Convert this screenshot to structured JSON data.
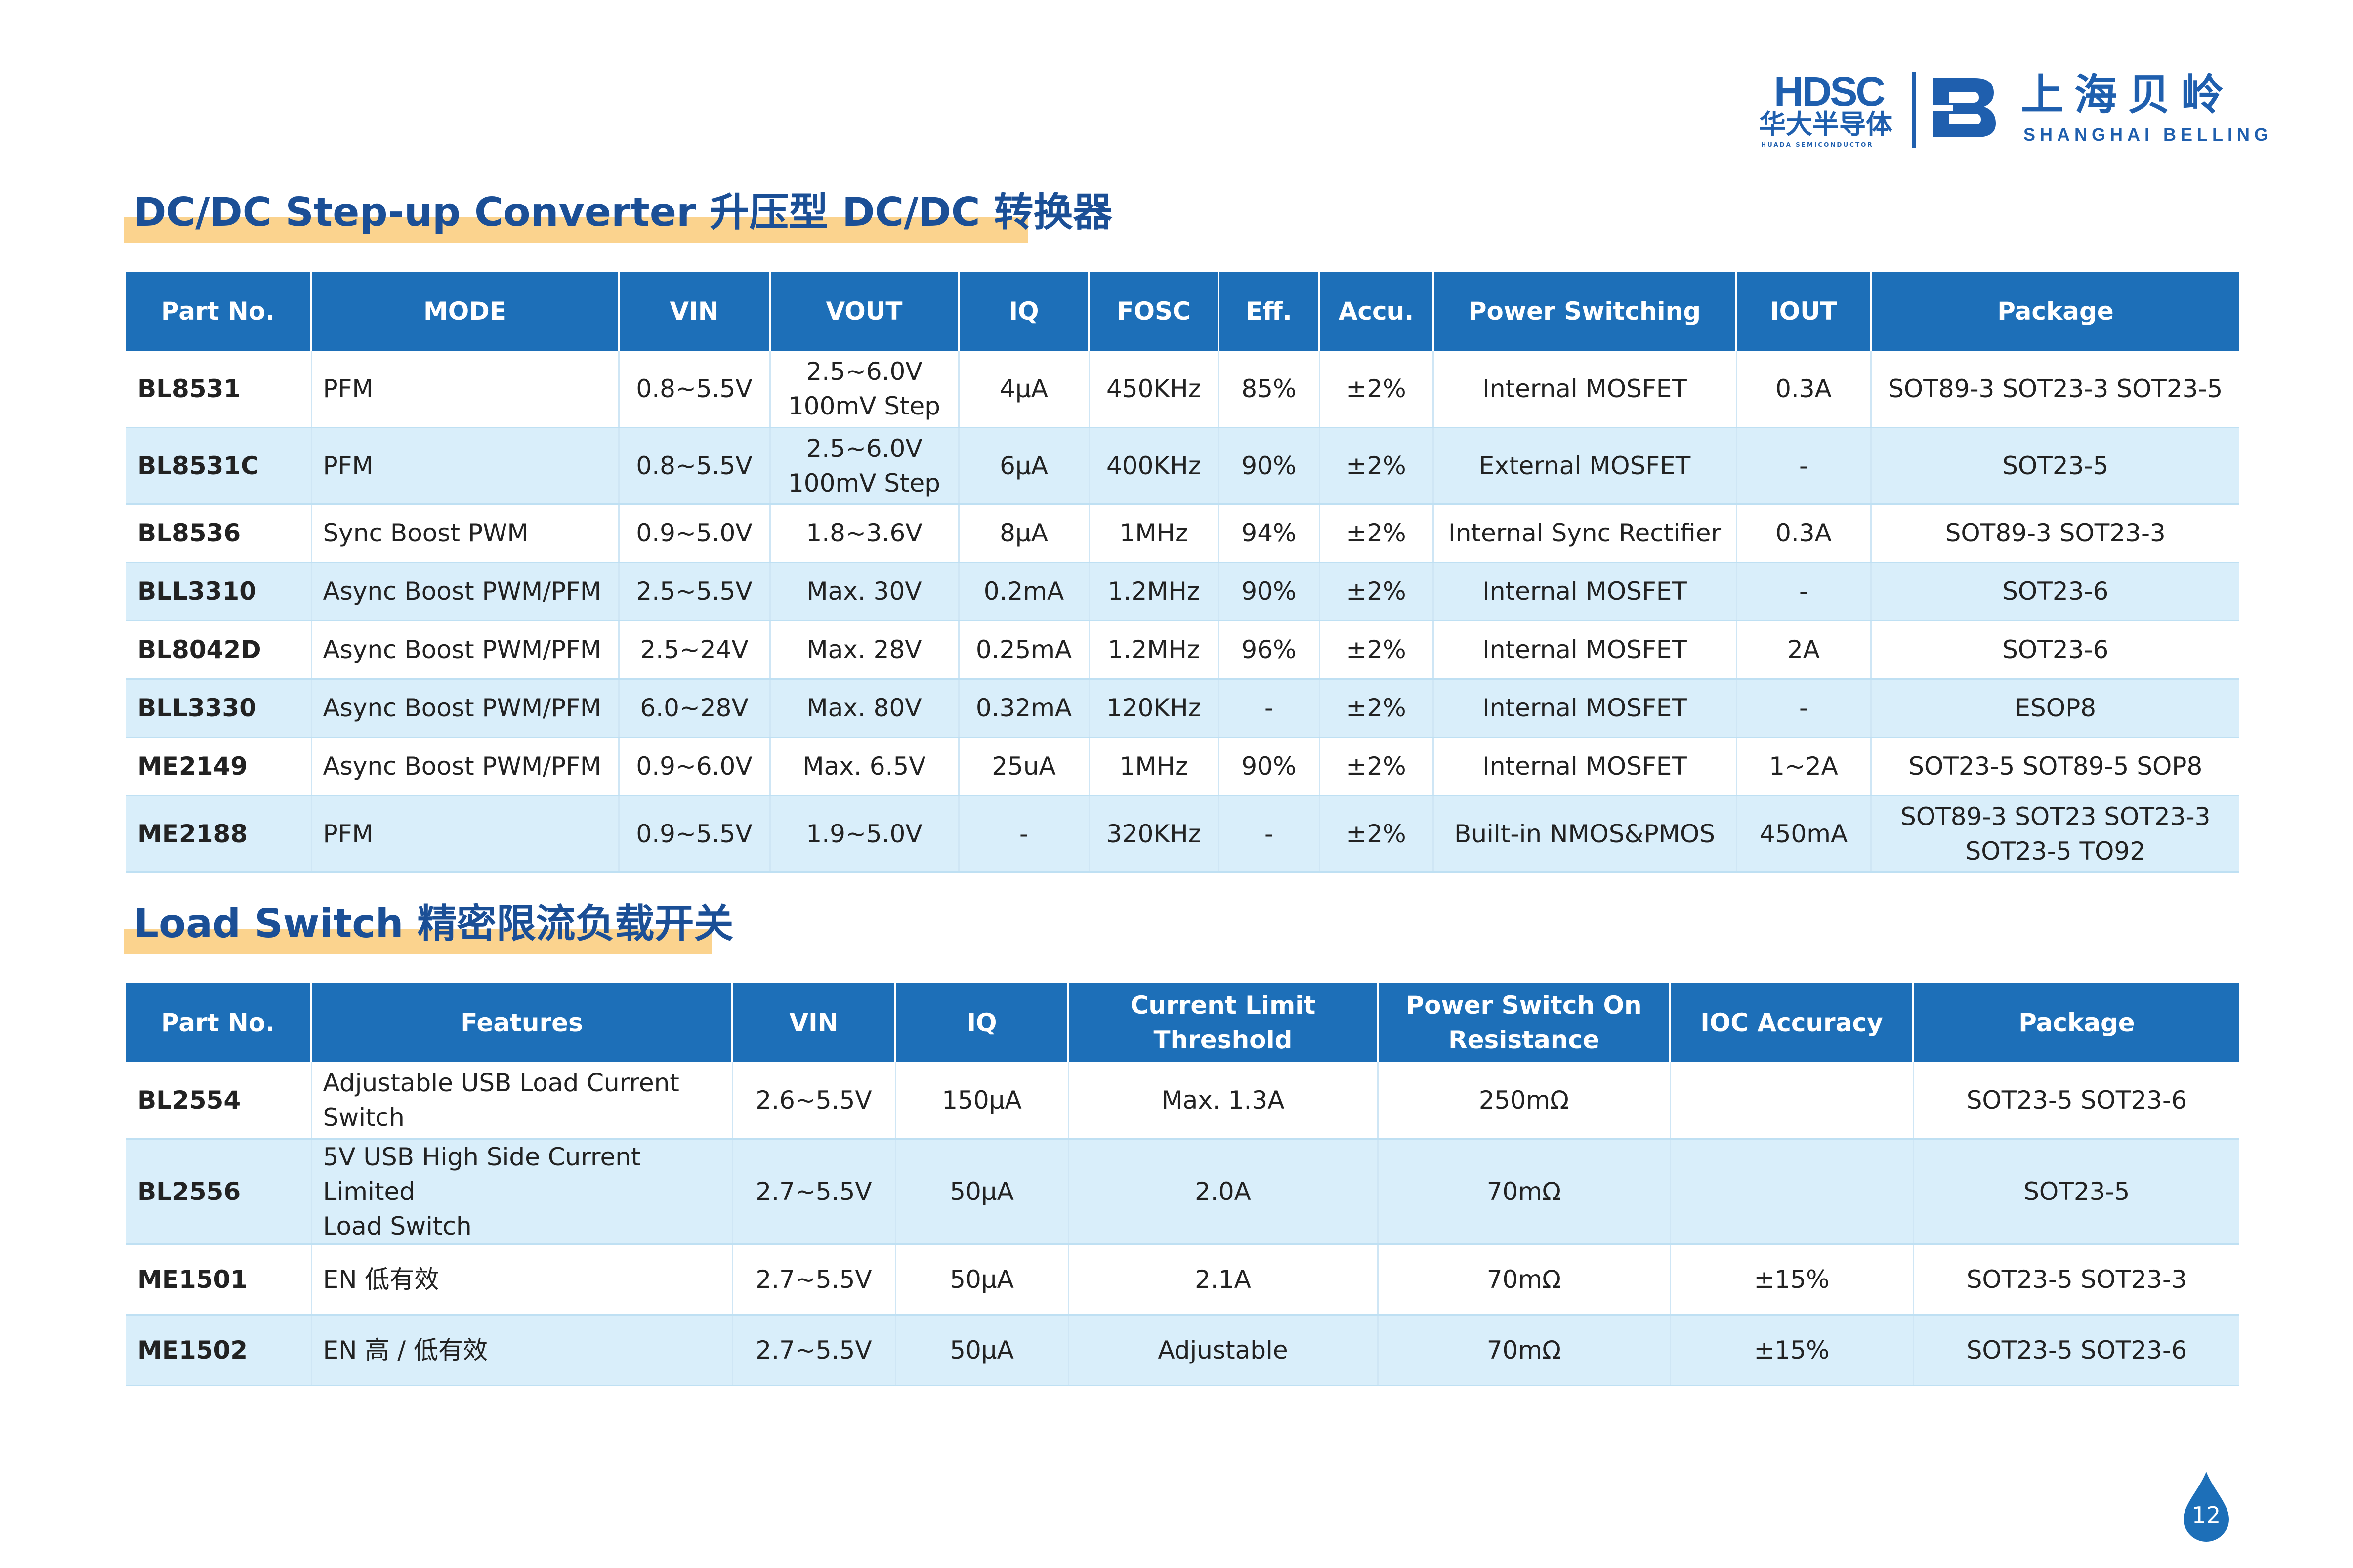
{
  "header": {
    "hdsc_mark": "HDSC",
    "hdsc_cn": "华大半导体",
    "hdsc_en": "HUADA SEMICONDUCTOR",
    "belling_cn": "上海贝岭",
    "belling_en": "SHANGHAI BELLING",
    "brand_color": "#1f5fae"
  },
  "colors": {
    "header_bg": "#1d6fb8",
    "row_alt": "#d9eefa",
    "title": "#1b4f96",
    "highlight": "#fbd38e"
  },
  "dcdc": {
    "title": "DC/DC Step-up Converter 升压型 DC/DC 转换器",
    "headers": [
      "Part No.",
      "MODE",
      "VIN",
      "VOUT",
      "IQ",
      "FOSC",
      "Eff.",
      "Accu.",
      "Power Switching",
      "IOUT",
      "Package"
    ],
    "rows": [
      [
        "BL8531",
        "PFM",
        "0.8~5.5V",
        "2.5~6.0V\n100mV Step",
        "4μA",
        "450KHz",
        "85%",
        "±2%",
        "Internal MOSFET",
        "0.3A",
        "SOT89-3 SOT23-3 SOT23-5"
      ],
      [
        "BL8531C",
        "PFM",
        "0.8~5.5V",
        "2.5~6.0V\n100mV Step",
        "6μA",
        "400KHz",
        "90%",
        "±2%",
        "External MOSFET",
        "-",
        "SOT23-5"
      ],
      [
        "BL8536",
        "Sync Boost PWM",
        "0.9~5.0V",
        "1.8~3.6V",
        "8μA",
        "1MHz",
        "94%",
        "±2%",
        "Internal Sync Rectifier",
        "0.3A",
        "SOT89-3 SOT23-3"
      ],
      [
        "BLL3310",
        "Async Boost PWM/PFM",
        "2.5~5.5V",
        "Max. 30V",
        "0.2mA",
        "1.2MHz",
        "90%",
        "±2%",
        "Internal MOSFET",
        "-",
        "SOT23-6"
      ],
      [
        "BL8042D",
        "Async Boost PWM/PFM",
        "2.5~24V",
        "Max. 28V",
        "0.25mA",
        "1.2MHz",
        "96%",
        "±2%",
        "Internal MOSFET",
        "2A",
        "SOT23-6"
      ],
      [
        "BLL3330",
        "Async Boost PWM/PFM",
        "6.0~28V",
        "Max. 80V",
        "0.32mA",
        "120KHz",
        "-",
        "±2%",
        "Internal MOSFET",
        "-",
        "ESOP8"
      ],
      [
        "ME2149",
        "Async Boost PWM/PFM",
        "0.9~6.0V",
        "Max. 6.5V",
        "25uA",
        "1MHz",
        "90%",
        "±2%",
        "Internal MOSFET",
        "1~2A",
        "SOT23-5 SOT89-5 SOP8"
      ],
      [
        "ME2188",
        "PFM",
        "0.9~5.5V",
        "1.9~5.0V",
        "-",
        "320KHz",
        "-",
        "±2%",
        "Built-in NMOS&PMOS",
        "450mA",
        "SOT89-3 SOT23 SOT23-3\nSOT23-5 TO92"
      ]
    ]
  },
  "load": {
    "title": "Load Switch  精密限流负载开关",
    "headers": [
      "Part No.",
      "Features",
      "VIN",
      "IQ",
      "Current Limit\nThreshold",
      "Power Switch On\nResistance",
      "IOC Accuracy",
      "Package"
    ],
    "rows": [
      [
        "BL2554",
        "Adjustable USB Load Current\nSwitch",
        "2.6~5.5V",
        "150μA",
        "Max. 1.3A",
        "250mΩ",
        "",
        "SOT23-5 SOT23-6"
      ],
      [
        "BL2556",
        "5V USB High Side Current Limited\nLoad Switch",
        "2.7~5.5V",
        "50μA",
        "2.0A",
        "70mΩ",
        "",
        "SOT23-5"
      ],
      [
        "ME1501",
        "EN 低有效",
        "2.7~5.5V",
        "50μA",
        "2.1A",
        "70mΩ",
        "±15%",
        "SOT23-5 SOT23-3"
      ],
      [
        "ME1502",
        "EN 高 / 低有效",
        "2.7~5.5V",
        "50μA",
        "Adjustable",
        "70mΩ",
        "±15%",
        "SOT23-5 SOT23-6"
      ]
    ]
  },
  "page_number": "12"
}
